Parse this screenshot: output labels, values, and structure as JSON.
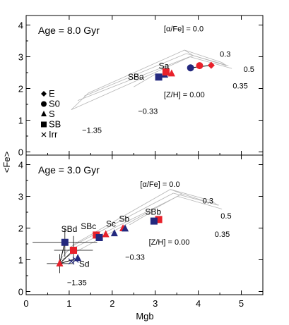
{
  "chart_data": [
    {
      "type": "scatter",
      "panel_label": "Age = 8.0 Gyr",
      "xlabel": "Mgb",
      "ylabel": "<Fe>",
      "xlim": [
        0,
        5.5
      ],
      "ylim": [
        -0.1,
        4.3
      ],
      "yticks": [
        "0",
        "1",
        "2",
        "3",
        "4"
      ],
      "grid_labels": {
        "alpha_title": "[α/Fe] = 0.0",
        "alpha_values": [
          "0.3",
          "0.5",
          "0.35"
        ],
        "zh_title": "[Z/H] = 0.00",
        "zh_values": [
          "−0.33",
          "−1.35"
        ]
      },
      "grid_lines": [
        [
          [
            1.05,
            1.33
          ],
          [
            3.88,
            3.04
          ]
        ],
        [
          [
            1.2,
            1.62
          ],
          [
            3.8,
            3.0
          ]
        ],
        [
          [
            1.35,
            1.76
          ],
          [
            3.72,
            3.1
          ]
        ],
        [
          [
            1.45,
            1.86
          ],
          [
            3.68,
            3.21
          ]
        ],
        [
          [
            3.88,
            3.04
          ],
          [
            4.65,
            2.72
          ]
        ],
        [
          [
            3.8,
            3.0
          ],
          [
            4.78,
            2.63
          ]
        ],
        [
          [
            3.72,
            3.1
          ],
          [
            4.7,
            2.72
          ]
        ],
        [
          [
            3.68,
            3.21
          ],
          [
            4.55,
            2.82
          ]
        ],
        [
          [
            1.05,
            1.33
          ],
          [
            1.45,
            1.86
          ]
        ],
        [
          [
            2.5,
            2.05
          ],
          [
            3.0,
            2.45
          ]
        ],
        [
          [
            3.88,
            3.04
          ],
          [
            3.68,
            3.21
          ]
        ],
        [
          [
            4.65,
            2.72
          ],
          [
            4.55,
            2.82
          ]
        ]
      ],
      "symbol_legend": [
        {
          "marker": "diamond",
          "label": "E"
        },
        {
          "marker": "circle",
          "label": "S0"
        },
        {
          "marker": "triangle",
          "label": "S"
        },
        {
          "marker": "square",
          "label": "SB"
        },
        {
          "marker": "cross",
          "label": "Irr"
        }
      ],
      "class_labels": [
        {
          "text": "Sa",
          "x": 3.2,
          "y": 2.62
        },
        {
          "text": "SBa",
          "x": 2.55,
          "y": 2.28
        }
      ],
      "series": [
        {
          "name": "E",
          "marker": "diamond",
          "color": "#e8202a",
          "points": [
            [
              4.3,
              2.73
            ]
          ]
        },
        {
          "name": "S0",
          "marker": "circle",
          "color": "#e8202a",
          "points": [
            [
              4.03,
              2.72
            ]
          ]
        },
        {
          "name": "S0",
          "marker": "circle",
          "color": "#23287e",
          "points": [
            [
              3.82,
              2.65
            ]
          ]
        },
        {
          "name": "S",
          "marker": "triangle",
          "color": "#e8202a",
          "points": [
            [
              3.38,
              2.47
            ]
          ]
        },
        {
          "name": "S",
          "marker": "triangle",
          "color": "#23287e",
          "points": [
            [
              3.22,
              2.43
            ]
          ]
        },
        {
          "name": "SB",
          "marker": "square",
          "color": "#e8202a",
          "points": [
            [
              3.25,
              2.52
            ]
          ]
        },
        {
          "name": "SB",
          "marker": "square",
          "color": "#23287e",
          "points": [
            [
              3.08,
              2.36
            ]
          ]
        }
      ],
      "connectors": [
        [
          [
            3.82,
            2.65
          ],
          [
            4.3,
            2.73
          ]
        ]
      ],
      "error_bars": []
    },
    {
      "type": "scatter",
      "panel_label": "Age = 3.0 Gyr",
      "xlabel": "Mgb",
      "ylabel": "<Fe>",
      "xlim": [
        0,
        5.5
      ],
      "ylim": [
        -0.1,
        4.3
      ],
      "xticks": [
        "0",
        "1",
        "2",
        "3",
        "4",
        "5"
      ],
      "yticks": [
        "0",
        "1",
        "2",
        "3",
        "4"
      ],
      "grid_labels": {
        "alpha_title": "[α/Fe] = 0.0",
        "alpha_values": [
          "0.3",
          "0.5",
          "0.35"
        ],
        "zh_title": "[Z/H] = 0.00",
        "zh_values": [
          "−0.33",
          "−1.35"
        ]
      },
      "grid_lines": [
        [
          [
            0.75,
            0.95
          ],
          [
            3.62,
            3.08
          ]
        ],
        [
          [
            0.88,
            1.22
          ],
          [
            3.52,
            3.0
          ]
        ],
        [
          [
            1.0,
            1.38
          ],
          [
            3.42,
            3.1
          ]
        ],
        [
          [
            1.1,
            1.48
          ],
          [
            3.35,
            3.22
          ]
        ],
        [
          [
            3.62,
            3.08
          ],
          [
            4.45,
            2.72
          ]
        ],
        [
          [
            3.52,
            3.0
          ],
          [
            4.55,
            2.6
          ]
        ],
        [
          [
            3.42,
            3.1
          ],
          [
            4.48,
            2.72
          ]
        ],
        [
          [
            3.35,
            3.22
          ],
          [
            4.3,
            2.86
          ]
        ],
        [
          [
            0.75,
            0.95
          ],
          [
            1.1,
            1.48
          ]
        ],
        [
          [
            2.4,
            2.1
          ],
          [
            2.9,
            2.5
          ]
        ],
        [
          [
            3.62,
            3.08
          ],
          [
            3.35,
            3.22
          ]
        ],
        [
          [
            4.45,
            2.72
          ],
          [
            4.3,
            2.86
          ]
        ]
      ],
      "class_labels": [
        {
          "text": "SBb",
          "x": 2.95,
          "y": 2.42
        },
        {
          "text": "Sb",
          "x": 2.28,
          "y": 2.2
        },
        {
          "text": "Sc",
          "x": 1.97,
          "y": 2.05
        },
        {
          "text": "SBc",
          "x": 1.45,
          "y": 1.97
        },
        {
          "text": "SBd",
          "x": 1.0,
          "y": 1.88
        },
        {
          "text": "Sd",
          "x": 1.35,
          "y": 0.78
        }
      ],
      "series": [
        {
          "name": "SB",
          "marker": "square",
          "color": "#e8202a",
          "points": [
            [
              3.08,
              2.27
            ],
            [
              1.63,
              1.78
            ],
            [
              1.1,
              1.3
            ]
          ]
        },
        {
          "name": "SB",
          "marker": "square",
          "color": "#23287e",
          "points": [
            [
              2.97,
              2.22
            ],
            [
              1.7,
              1.7
            ],
            [
              0.9,
              1.55
            ]
          ]
        },
        {
          "name": "S",
          "marker": "triangle",
          "color": "#e8202a",
          "points": [
            [
              2.25,
              1.99
            ],
            [
              1.85,
              1.8
            ],
            [
              0.78,
              0.88
            ]
          ]
        },
        {
          "name": "S",
          "marker": "triangle",
          "color": "#23287e",
          "points": [
            [
              2.3,
              1.98
            ],
            [
              2.05,
              1.83
            ],
            [
              1.2,
              1.05
            ]
          ]
        },
        {
          "name": "Irr",
          "marker": "cross",
          "color": "#23287e",
          "points": [
            [
              1.15,
              1.0
            ],
            [
              1.05,
              0.95
            ]
          ]
        }
      ],
      "connectors": [
        [
          [
            0.78,
            0.88
          ],
          [
            0.9,
            1.55
          ]
        ],
        [
          [
            0.78,
            0.88
          ],
          [
            1.2,
            1.05
          ]
        ],
        [
          [
            0.78,
            0.88
          ],
          [
            1.1,
            1.3
          ]
        ]
      ],
      "error_bars": [
        {
          "x": 0.9,
          "y": 1.55,
          "xerr": 0.75,
          "yerr": 0.45
        },
        {
          "x": 1.1,
          "y": 1.3,
          "xerr": 0.45,
          "yerr": 0.45
        },
        {
          "x": 0.78,
          "y": 0.88,
          "xerr": 0.3,
          "yerr": 0.3
        }
      ]
    }
  ]
}
